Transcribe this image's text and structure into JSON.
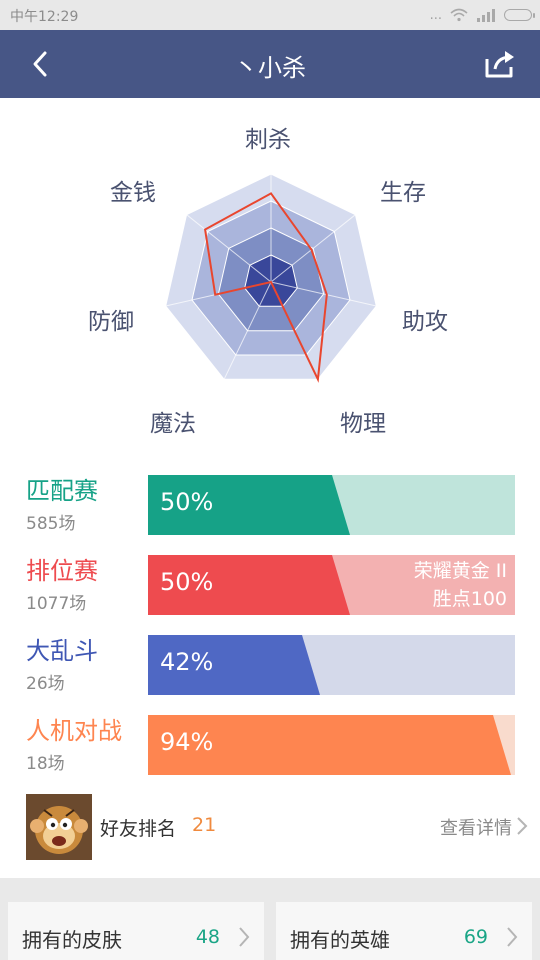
{
  "status_bar": {
    "time": "中午12:29",
    "dots": "..."
  },
  "header": {
    "title": "丶小杀"
  },
  "radar": {
    "axes": [
      "刺杀",
      "生存",
      "助攻",
      "物理",
      "魔法",
      "防御",
      "金钱"
    ],
    "values": [
      0.82,
      0.48,
      0.53,
      1.0,
      0.0,
      0.53,
      0.78
    ]
  },
  "modes": [
    {
      "name": "匹配赛",
      "count": "585场",
      "percent_label": "50%",
      "percent": 0.5,
      "color": "#16a287",
      "track": "#bfe4db",
      "text_color": "#16a287"
    },
    {
      "name": "排位赛",
      "count": "1077场",
      "percent_label": "50%",
      "percent": 0.5,
      "color": "#ee4b4f",
      "track": "#f3b1b1",
      "text_color": "#ee4b4f",
      "rank_tier": "荣耀黄金 II",
      "rank_points": "胜点100"
    },
    {
      "name": "大乱斗",
      "count": "26场",
      "percent_label": "42%",
      "percent": 0.42,
      "color": "#4f68c4",
      "track": "#d4d9ea",
      "text_color": "#3f57b4"
    },
    {
      "name": "人机对战",
      "count": "18场",
      "percent_label": "94%",
      "percent": 0.94,
      "color": "#fe8550",
      "track": "#f9dbcd",
      "text_color": "#fe8550"
    }
  ],
  "friends": {
    "label": "好友排名",
    "rank": "21",
    "detail": "查看详情"
  },
  "bottom": {
    "skins_label": "拥有的皮肤",
    "skins_count": "48",
    "heroes_label": "拥有的英雄",
    "heroes_count": "69"
  }
}
